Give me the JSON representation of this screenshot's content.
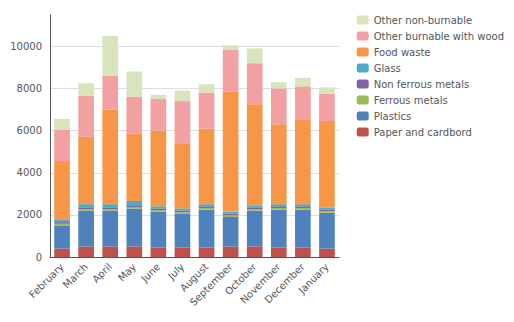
{
  "chart_data": {
    "type": "bar",
    "stacked": true,
    "grid": true,
    "legend": "right",
    "categories": [
      "February",
      "March",
      "April",
      "May",
      "June",
      "July",
      "August",
      "September",
      "October",
      "November",
      "December",
      "January"
    ],
    "series": [
      {
        "name": "Paper and cardbord",
        "color": "#c0504d",
        "values": [
          400,
          500,
          500,
          500,
          450,
          450,
          450,
          500,
          500,
          450,
          450,
          400
        ]
      },
      {
        "name": "Plastics",
        "color": "#4f81bd",
        "values": [
          1100,
          1700,
          1700,
          1800,
          1700,
          1600,
          1800,
          1400,
          1700,
          1800,
          1800,
          1700
        ]
      },
      {
        "name": "Ferrous metals",
        "color": "#9bbb59",
        "values": [
          80,
          80,
          80,
          80,
          80,
          80,
          80,
          80,
          80,
          80,
          80,
          80
        ]
      },
      {
        "name": "Non ferrous metals",
        "color": "#8064a2",
        "values": [
          80,
          80,
          80,
          80,
          80,
          80,
          80,
          80,
          80,
          80,
          80,
          80
        ]
      },
      {
        "name": "Glass",
        "color": "#4bacc6",
        "values": [
          100,
          150,
          150,
          200,
          100,
          100,
          100,
          100,
          100,
          100,
          100,
          100
        ]
      },
      {
        "name": "Food waste",
        "color": "#f79646",
        "values": [
          2800,
          3200,
          4500,
          3200,
          3600,
          3100,
          3600,
          5700,
          4800,
          3800,
          4000,
          4100
        ]
      },
      {
        "name": "Other burnable with wood",
        "color": "#f2a0a1",
        "values": [
          1500,
          1950,
          1600,
          1750,
          1500,
          2000,
          1700,
          2000,
          1950,
          1700,
          1600,
          1300
        ]
      },
      {
        "name": "Other non-burnable",
        "color": "#d7e4bc",
        "values": [
          500,
          600,
          1900,
          1200,
          200,
          500,
          400,
          200,
          700,
          300,
          400,
          300
        ]
      }
    ],
    "ylim": [
      0,
      11500
    ],
    "yticks": [
      0,
      2000,
      4000,
      6000,
      8000,
      10000
    ]
  }
}
